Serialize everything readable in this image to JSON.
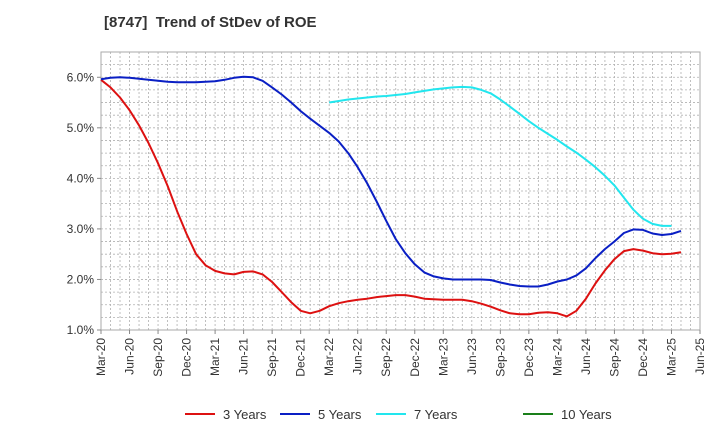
{
  "chart_data": {
    "type": "line",
    "title": "[8747]  Trend of StDev of ROE",
    "xlabel": "",
    "ylabel": "",
    "ylim": [
      1.0,
      6.5
    ],
    "y_ticks": [
      1.0,
      2.0,
      3.0,
      4.0,
      5.0,
      6.0
    ],
    "y_tick_labels": [
      "1.0%",
      "2.0%",
      "3.0%",
      "4.0%",
      "5.0%",
      "6.0%"
    ],
    "x_tick_labels": [
      "Mar-20",
      "Jun-20",
      "Sep-20",
      "Dec-20",
      "Mar-21",
      "Jun-21",
      "Sep-21",
      "Dec-21",
      "Mar-22",
      "Jun-22",
      "Sep-22",
      "Dec-22",
      "Mar-23",
      "Jun-23",
      "Sep-23",
      "Dec-23",
      "Mar-24",
      "Jun-24",
      "Sep-24",
      "Dec-24",
      "Mar-25",
      "Jun-25"
    ],
    "grid": true,
    "legend_position": "bottom",
    "series": [
      {
        "name": "3 Years",
        "color": "#dd1111",
        "points": [
          [
            "Mar-20",
            5.95
          ],
          [
            "Apr-20",
            5.8
          ],
          [
            "May-20",
            5.6
          ],
          [
            "Jun-20",
            5.35
          ],
          [
            "Jul-20",
            5.05
          ],
          [
            "Aug-20",
            4.7
          ],
          [
            "Sep-20",
            4.3
          ],
          [
            "Oct-20",
            3.85
          ],
          [
            "Nov-20",
            3.35
          ],
          [
            "Dec-20",
            2.9
          ],
          [
            "Jan-21",
            2.5
          ],
          [
            "Feb-21",
            2.28
          ],
          [
            "Mar-21",
            2.17
          ],
          [
            "Apr-21",
            2.12
          ],
          [
            "May-21",
            2.1
          ],
          [
            "Jun-21",
            2.15
          ],
          [
            "Jul-21",
            2.16
          ],
          [
            "Aug-21",
            2.1
          ],
          [
            "Sep-21",
            1.95
          ],
          [
            "Oct-21",
            1.75
          ],
          [
            "Nov-21",
            1.55
          ],
          [
            "Dec-21",
            1.38
          ],
          [
            "Jan-22",
            1.33
          ],
          [
            "Feb-22",
            1.38
          ],
          [
            "Mar-22",
            1.47
          ],
          [
            "Apr-22",
            1.53
          ],
          [
            "May-22",
            1.57
          ],
          [
            "Jun-22",
            1.6
          ],
          [
            "Jul-22",
            1.62
          ],
          [
            "Aug-22",
            1.65
          ],
          [
            "Sep-22",
            1.67
          ],
          [
            "Oct-22",
            1.69
          ],
          [
            "Nov-22",
            1.69
          ],
          [
            "Dec-22",
            1.66
          ],
          [
            "Jan-23",
            1.62
          ],
          [
            "Feb-23",
            1.61
          ],
          [
            "Mar-23",
            1.6
          ],
          [
            "Apr-23",
            1.6
          ],
          [
            "May-23",
            1.6
          ],
          [
            "Jun-23",
            1.57
          ],
          [
            "Jul-23",
            1.52
          ],
          [
            "Aug-23",
            1.46
          ],
          [
            "Sep-23",
            1.39
          ],
          [
            "Oct-23",
            1.33
          ],
          [
            "Nov-23",
            1.31
          ],
          [
            "Dec-23",
            1.31
          ],
          [
            "Jan-24",
            1.34
          ],
          [
            "Feb-24",
            1.35
          ],
          [
            "Mar-24",
            1.33
          ],
          [
            "Apr-24",
            1.27
          ],
          [
            "May-24",
            1.38
          ],
          [
            "Jun-24",
            1.62
          ],
          [
            "Jul-24",
            1.92
          ],
          [
            "Aug-24",
            2.18
          ],
          [
            "Sep-24",
            2.4
          ],
          [
            "Oct-24",
            2.56
          ],
          [
            "Nov-24",
            2.6
          ],
          [
            "Dec-24",
            2.57
          ],
          [
            "Jan-25",
            2.52
          ],
          [
            "Feb-25",
            2.5
          ],
          [
            "Mar-25",
            2.51
          ],
          [
            "Apr-25",
            2.54
          ]
        ]
      },
      {
        "name": "5 Years",
        "color": "#0a1fc4",
        "points": [
          [
            "Mar-20",
            5.96
          ],
          [
            "Apr-20",
            5.99
          ],
          [
            "May-20",
            6.0
          ],
          [
            "Jun-20",
            5.99
          ],
          [
            "Jul-20",
            5.97
          ],
          [
            "Aug-20",
            5.95
          ],
          [
            "Sep-20",
            5.93
          ],
          [
            "Oct-20",
            5.91
          ],
          [
            "Nov-20",
            5.9
          ],
          [
            "Dec-20",
            5.9
          ],
          [
            "Jan-21",
            5.9
          ],
          [
            "Feb-21",
            5.91
          ],
          [
            "Mar-21",
            5.92
          ],
          [
            "Apr-21",
            5.95
          ],
          [
            "May-21",
            5.99
          ],
          [
            "Jun-21",
            6.01
          ],
          [
            "Jul-21",
            6.0
          ],
          [
            "Aug-21",
            5.93
          ],
          [
            "Sep-21",
            5.8
          ],
          [
            "Oct-21",
            5.66
          ],
          [
            "Nov-21",
            5.5
          ],
          [
            "Dec-21",
            5.33
          ],
          [
            "Jan-22",
            5.18
          ],
          [
            "Feb-22",
            5.04
          ],
          [
            "Mar-22",
            4.9
          ],
          [
            "Apr-22",
            4.73
          ],
          [
            "May-22",
            4.5
          ],
          [
            "Jun-22",
            4.22
          ],
          [
            "Jul-22",
            3.9
          ],
          [
            "Aug-22",
            3.54
          ],
          [
            "Sep-22",
            3.16
          ],
          [
            "Oct-22",
            2.8
          ],
          [
            "Nov-22",
            2.52
          ],
          [
            "Dec-22",
            2.3
          ],
          [
            "Jan-23",
            2.14
          ],
          [
            "Feb-23",
            2.06
          ],
          [
            "Mar-23",
            2.02
          ],
          [
            "Apr-23",
            2.0
          ],
          [
            "May-23",
            2.0
          ],
          [
            "Jun-23",
            2.0
          ],
          [
            "Jul-23",
            2.0
          ],
          [
            "Aug-23",
            1.99
          ],
          [
            "Sep-23",
            1.94
          ],
          [
            "Oct-23",
            1.9
          ],
          [
            "Nov-23",
            1.87
          ],
          [
            "Dec-23",
            1.86
          ],
          [
            "Jan-24",
            1.86
          ],
          [
            "Feb-24",
            1.9
          ],
          [
            "Mar-24",
            1.96
          ],
          [
            "Apr-24",
            2.0
          ],
          [
            "May-24",
            2.08
          ],
          [
            "Jun-24",
            2.22
          ],
          [
            "Jul-24",
            2.42
          ],
          [
            "Aug-24",
            2.6
          ],
          [
            "Sep-24",
            2.75
          ],
          [
            "Oct-24",
            2.92
          ],
          [
            "Nov-24",
            2.99
          ],
          [
            "Dec-24",
            2.98
          ],
          [
            "Jan-25",
            2.91
          ],
          [
            "Feb-25",
            2.88
          ],
          [
            "Mar-25",
            2.9
          ],
          [
            "Apr-25",
            2.96
          ]
        ]
      },
      {
        "name": "7 Years",
        "color": "#22e6ee",
        "points": [
          [
            "Mar-22",
            5.5
          ],
          [
            "Apr-22",
            5.53
          ],
          [
            "May-22",
            5.56
          ],
          [
            "Jun-22",
            5.58
          ],
          [
            "Jul-22",
            5.6
          ],
          [
            "Aug-22",
            5.62
          ],
          [
            "Sep-22",
            5.63
          ],
          [
            "Oct-22",
            5.65
          ],
          [
            "Nov-22",
            5.67
          ],
          [
            "Dec-22",
            5.7
          ],
          [
            "Jan-23",
            5.73
          ],
          [
            "Feb-23",
            5.76
          ],
          [
            "Mar-23",
            5.78
          ],
          [
            "Apr-23",
            5.8
          ],
          [
            "May-23",
            5.81
          ],
          [
            "Jun-23",
            5.8
          ],
          [
            "Jul-23",
            5.75
          ],
          [
            "Aug-23",
            5.68
          ],
          [
            "Sep-23",
            5.56
          ],
          [
            "Oct-23",
            5.42
          ],
          [
            "Nov-23",
            5.28
          ],
          [
            "Dec-23",
            5.13
          ],
          [
            "Jan-24",
            5.0
          ],
          [
            "Feb-24",
            4.88
          ],
          [
            "Mar-24",
            4.76
          ],
          [
            "Apr-24",
            4.63
          ],
          [
            "May-24",
            4.51
          ],
          [
            "Jun-24",
            4.37
          ],
          [
            "Jul-24",
            4.22
          ],
          [
            "Aug-24",
            4.05
          ],
          [
            "Sep-24",
            3.86
          ],
          [
            "Oct-24",
            3.62
          ],
          [
            "Nov-24",
            3.38
          ],
          [
            "Dec-24",
            3.2
          ],
          [
            "Jan-25",
            3.1
          ],
          [
            "Feb-25",
            3.06
          ],
          [
            "Mar-25",
            3.06
          ]
        ]
      },
      {
        "name": "10 Years",
        "color": "#1a7f1a",
        "points": []
      }
    ]
  }
}
